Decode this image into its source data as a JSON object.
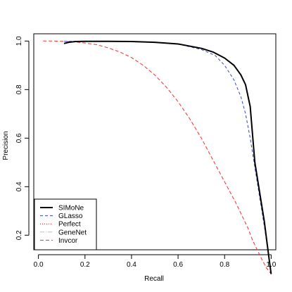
{
  "chart_data": {
    "type": "line",
    "xlabel": "Recall",
    "ylabel": "Precision",
    "xlim": [
      -0.02,
      1.02
    ],
    "ylim": [
      0.14,
      1.03
    ],
    "xticks": [
      0.0,
      0.2,
      0.4,
      0.6,
      0.8,
      1.0
    ],
    "xtick_labels": [
      "0.0",
      "0.2",
      "0.4",
      "0.6",
      "0.8",
      "1.0"
    ],
    "yticks": [
      0.2,
      0.4,
      0.6,
      0.8,
      1.0
    ],
    "ytick_labels": [
      "0.2",
      "0.4",
      "0.6",
      "0.8",
      "1.0"
    ],
    "grid": false,
    "legend_position": "bottom-left",
    "series": [
      {
        "name": "SIMoNe",
        "color": "#000000",
        "dash": "solid",
        "width": 2,
        "x": [
          0.11,
          0.13,
          0.16,
          0.2,
          0.3,
          0.4,
          0.5,
          0.6,
          0.7,
          0.75,
          0.8,
          0.84,
          0.87,
          0.89,
          0.91,
          0.93,
          0.95,
          0.97,
          0.99,
          1.0
        ],
        "y": [
          0.99,
          0.995,
          0.998,
          0.999,
          0.999,
          0.998,
          0.995,
          0.988,
          0.97,
          0.955,
          0.93,
          0.9,
          0.86,
          0.82,
          0.73,
          0.5,
          0.38,
          0.26,
          0.11,
          0.04
        ]
      },
      {
        "name": "GLasso",
        "color": "#3344cc",
        "dash": "4,3",
        "width": 1,
        "x": [
          0.11,
          0.2,
          0.3,
          0.4,
          0.5,
          0.6,
          0.7,
          0.76,
          0.8,
          0.84,
          0.87,
          0.89,
          0.91,
          0.93,
          0.95,
          0.97,
          0.99,
          1.0
        ],
        "y": [
          0.999,
          0.999,
          0.999,
          0.998,
          0.995,
          0.988,
          0.965,
          0.94,
          0.9,
          0.84,
          0.77,
          0.7,
          0.6,
          0.48,
          0.36,
          0.24,
          0.11,
          0.04
        ]
      },
      {
        "name": "Perfect",
        "color": "#ff0000",
        "dash": "1,2",
        "width": 1,
        "x": [],
        "y": []
      },
      {
        "name": "GeneNet",
        "color": "#bbbbbb",
        "dash": "6,2,1,2",
        "width": 1,
        "x": [],
        "y": []
      },
      {
        "name": "Invcor",
        "color": "#ff2a2a",
        "dash": "5,3",
        "width": 1,
        "x": [
          0.02,
          0.06,
          0.1,
          0.15,
          0.2,
          0.25,
          0.3,
          0.35,
          0.4,
          0.45,
          0.5,
          0.55,
          0.6,
          0.65,
          0.7,
          0.75,
          0.8,
          0.85,
          0.88,
          0.9,
          0.92,
          0.94,
          0.96,
          0.98,
          1.0
        ],
        "y": [
          1.0,
          1.0,
          0.999,
          0.997,
          0.992,
          0.985,
          0.972,
          0.955,
          0.932,
          0.9,
          0.86,
          0.81,
          0.75,
          0.68,
          0.6,
          0.51,
          0.42,
          0.33,
          0.27,
          0.23,
          0.18,
          0.14,
          0.1,
          0.065,
          0.04
        ]
      }
    ]
  }
}
